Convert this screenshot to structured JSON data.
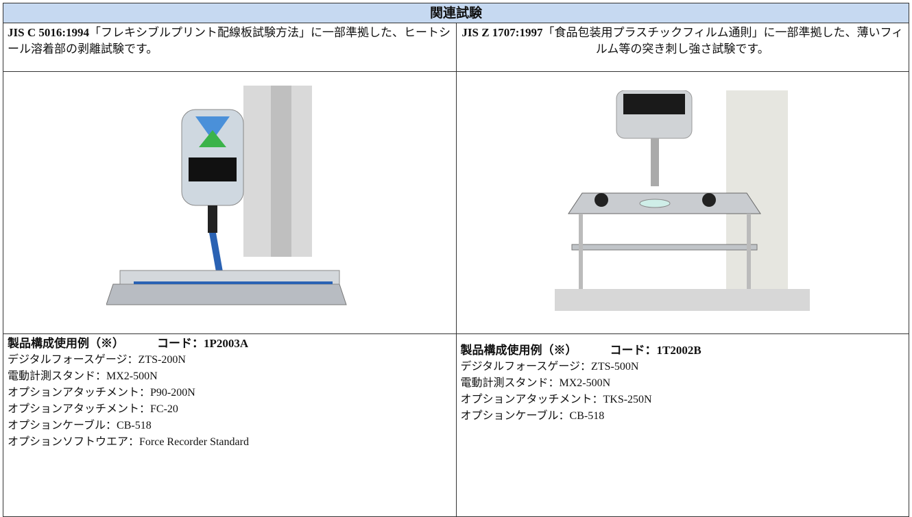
{
  "header": {
    "title": "関連試験"
  },
  "tests": [
    {
      "standard": "JIS C 5016:1994",
      "description": "「フレキシブルプリント配線板試験方法」に一部準拠した、ヒートシール溶着部の剥離試験です。",
      "product": {
        "title": "製品構成使用例（※）",
        "code": "コード：1P2003A",
        "items": [
          "デジタルフォースゲージ：ZTS-200N",
          "電動計測スタンド：MX2-500N",
          "オプションアタッチメント：P90-200N",
          "オプションアタッチメント：FC-20",
          "オプションケーブル：CB-518",
          "オプションソフトウエア：Force Recorder Standard"
        ]
      }
    },
    {
      "standard": "JIS Z 1707:1997",
      "description": "「食品包装用プラスチックフィルム通則」に一部準拠した、薄いフィルム等の突き刺し強さ試験です。",
      "product": {
        "title": "製品構成使用例（※）",
        "code": "コード：1T2002B",
        "items": [
          "デジタルフォースゲージ：ZTS-500N",
          "電動計測スタンド：MX2-500N",
          "オプションアタッチメント：TKS-250N",
          "オプションケーブル：CB-518"
        ]
      }
    }
  ]
}
